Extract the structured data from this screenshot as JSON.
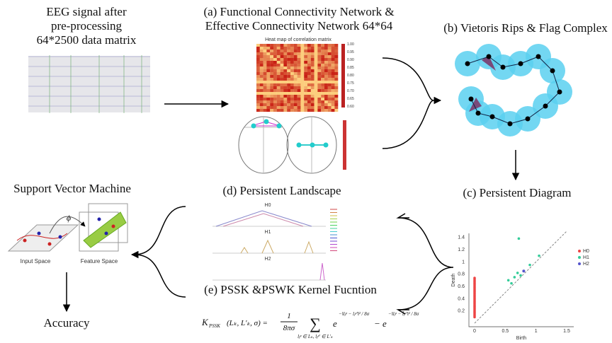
{
  "eeg": {
    "lines": [
      "EEG signal after",
      "pre-processing",
      "64*2500 data matrix"
    ]
  },
  "connectivity": {
    "lines": [
      "(a)  Functional Connectivity Network &",
      "Effective Connectivity Network 64*64"
    ],
    "heatmap_title": "Heat map of correlation matrix",
    "colorbar": [
      "1.00",
      "0.95",
      "0.90",
      "0.85",
      "0.80",
      "0.75",
      "0.70",
      "0.65",
      "0.60"
    ]
  },
  "complex": {
    "title": "(b) Vietoris Rips & Flag Complex"
  },
  "diagram": {
    "title": "(c) Persistent Diagram",
    "x_label": "Birth",
    "y_label": "Death",
    "x_ticks": [
      "0",
      "0.5",
      "1",
      "1.5"
    ],
    "y_ticks": [
      "0.2",
      "0.4",
      "0.6",
      "0.8",
      "1",
      "1.2",
      "1.4"
    ],
    "legend": [
      "H0",
      "H1",
      "H2"
    ]
  },
  "landscape": {
    "title": "(d) Persistent Landscape",
    "panels": [
      "H0",
      "H1",
      "H2"
    ]
  },
  "kernel": {
    "title": "(e) PSSK &PSWK Kernel Fucntion",
    "lhs": "K",
    "lhs_sub": "PSSK",
    "lhs_args": "(Lₖ, L′ₖ, σ) =",
    "num": "1",
    "den": "8πσ",
    "sum": "∑",
    "sum_sub": "lⱼᵖ ∈ Lₖ, lⱼᵖ′ ∈ L′ₖ",
    "e1": "e",
    "exp1": "−‖lⱼᵖ − lⱼᵖ′‖² / 8σ",
    "minus": "−",
    "e2": "e",
    "exp2": "−‖lⱼᵖ − l̄ⱼᵖ′‖² / 8σ"
  },
  "svm": {
    "title": "Support Vector Machine",
    "phi": "ϕ",
    "input": "Input Space",
    "feature": "Feature Space"
  },
  "result": {
    "title": "Accuracy"
  }
}
